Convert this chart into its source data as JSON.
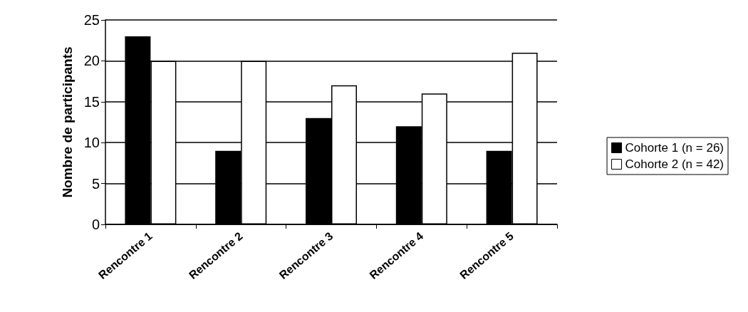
{
  "chart_data": {
    "type": "bar",
    "ylabel": "Nombre de participants",
    "categories": [
      "Rencontre 1",
      "Rencontre 2",
      "Rencontre 3",
      "Rencontre 4",
      "Rencontre 5"
    ],
    "series": [
      {
        "name": "Cohorte 1 (n = 26)",
        "color": "#000000",
        "values": [
          23,
          9,
          13,
          12,
          9
        ]
      },
      {
        "name": "Cohorte 2 (n = 42)",
        "color": "#ffffff",
        "values": [
          20,
          20,
          17,
          16,
          21
        ]
      }
    ],
    "ylim": [
      0,
      25
    ],
    "yticks": [
      0,
      5,
      10,
      15,
      20,
      25
    ],
    "grid": "y",
    "legend": "right"
  }
}
